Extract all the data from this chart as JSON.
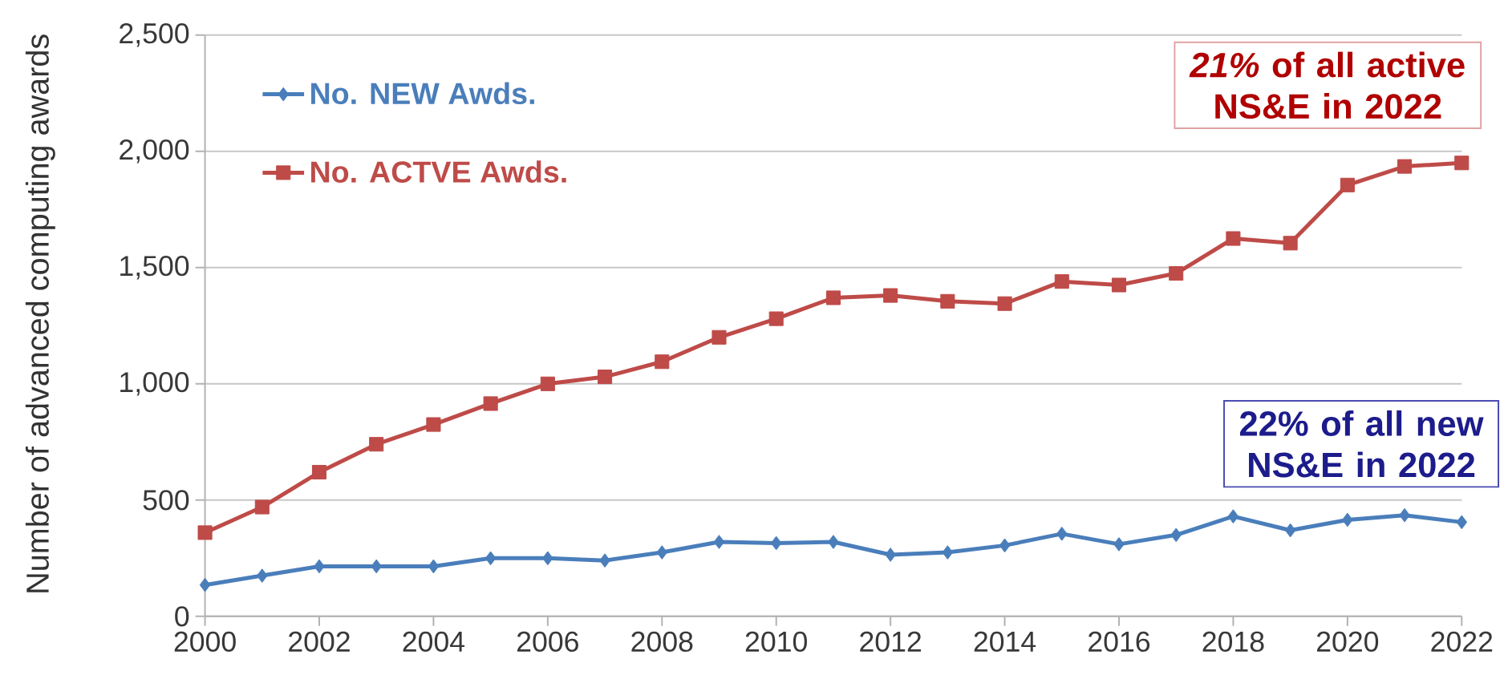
{
  "chart_data": {
    "type": "line",
    "ylabel": "Number of advanced computing awards",
    "x": [
      2000,
      2001,
      2002,
      2003,
      2004,
      2005,
      2006,
      2007,
      2008,
      2009,
      2010,
      2011,
      2012,
      2013,
      2014,
      2015,
      2016,
      2017,
      2018,
      2019,
      2020,
      2021,
      2022
    ],
    "series": [
      {
        "name": "No. NEW Awds.",
        "color": "#4a7ebb",
        "marker": "diamond",
        "values": [
          135,
          175,
          215,
          215,
          215,
          250,
          250,
          240,
          275,
          320,
          315,
          320,
          265,
          275,
          305,
          355,
          310,
          350,
          430,
          370,
          415,
          435,
          405
        ]
      },
      {
        "name": "No. ACTVE Awds.",
        "color": "#be4b48",
        "marker": "square",
        "values": [
          360,
          470,
          620,
          740,
          825,
          915,
          1000,
          1030,
          1095,
          1200,
          1280,
          1370,
          1380,
          1355,
          1345,
          1440,
          1425,
          1475,
          1625,
          1605,
          1855,
          1935,
          1950
        ]
      }
    ],
    "xlim": [
      2000,
      2022
    ],
    "xticks": [
      2000,
      2002,
      2004,
      2006,
      2008,
      2010,
      2012,
      2014,
      2016,
      2018,
      2020,
      2022
    ],
    "ylim": [
      0,
      2500
    ],
    "yticks": [
      0,
      500,
      {
        "value": 1000,
        "label": "1,000"
      },
      {
        "value": 1500,
        "label": "1,500"
      },
      {
        "value": 2000,
        "label": "2,000"
      },
      {
        "value": 2500,
        "label": "2,500"
      }
    ],
    "grid": "y",
    "legend": "top left",
    "annotations": [
      "*21%* of all active NS&E in 2022",
      "22% of all new NS&E in 2022"
    ]
  }
}
